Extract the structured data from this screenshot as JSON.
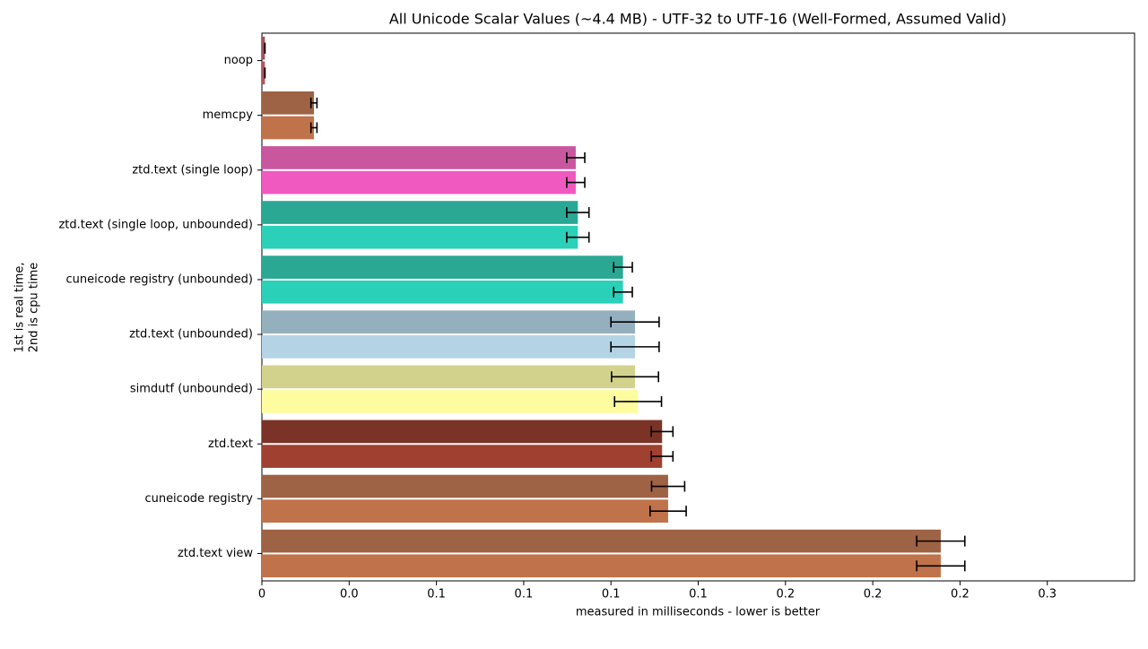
{
  "chart_data": {
    "type": "bar",
    "orientation": "horizontal",
    "title": "All Unicode Scalar Values (~4.4 MB) - UTF-32 to UTF-16 (Well-Formed, Assumed Valid)",
    "xlabel": "measured in milliseconds - lower is better",
    "ylabel": [
      "1st is real time,",
      "2nd is cpu time"
    ],
    "categories": [
      "noop",
      "memcpy",
      "ztd.text (single loop)",
      "ztd.text (single loop, unbounded)",
      "cuneicode registry (unbounded)",
      "ztd.text (unbounded)",
      "simdutf (unbounded)",
      "ztd.text",
      "cuneicode registry",
      "ztd.text view"
    ],
    "series": [
      {
        "colors": [
          "#a0525a",
          "#9e6245",
          "#c857a0",
          "#2aa894",
          "#2aa894",
          "#94b0bf",
          "#d3d28c",
          "#7a3326",
          "#9e6245",
          "#9e6245"
        ],
        "values": [
          0.001,
          0.0173,
          0.1043,
          0.105,
          0.12,
          0.124,
          0.124,
          0.133,
          0.135,
          0.2256
        ],
        "errors": [
          0.0,
          0.001,
          0.003,
          0.0037,
          0.0031,
          0.008,
          0.0078,
          0.0036,
          0.0055,
          0.008
        ]
      },
      {
        "colors": [
          "#b05560",
          "#c0724a",
          "#f059c0",
          "#2bd0b8",
          "#2bd0b8",
          "#b4d4e6",
          "#fdfda0",
          "#a04030",
          "#c0724a",
          "#c0724a"
        ],
        "values": [
          0.001,
          0.0173,
          0.1043,
          0.105,
          0.12,
          0.124,
          0.125,
          0.133,
          0.135,
          0.2256
        ],
        "errors": [
          0.0,
          0.001,
          0.003,
          0.0037,
          0.0031,
          0.008,
          0.0078,
          0.0036,
          0.006,
          0.008
        ]
      }
    ],
    "xlim": [
      0,
      0.29
    ],
    "xticks": [
      0,
      {
        "value": 0.029,
        "label": "0.0"
      },
      {
        "value": 0.058,
        "label": "0.1"
      },
      {
        "value": 0.087,
        "label": "0.1"
      },
      {
        "value": 0.116,
        "label": "0.1"
      },
      {
        "value": 0.145,
        "label": "0.1"
      },
      {
        "value": 0.174,
        "label": "0.2"
      },
      {
        "value": 0.203,
        "label": "0.2"
      },
      {
        "value": 0.232,
        "label": "0.2"
      },
      {
        "value": 0.261,
        "label": "0.3"
      }
    ]
  }
}
